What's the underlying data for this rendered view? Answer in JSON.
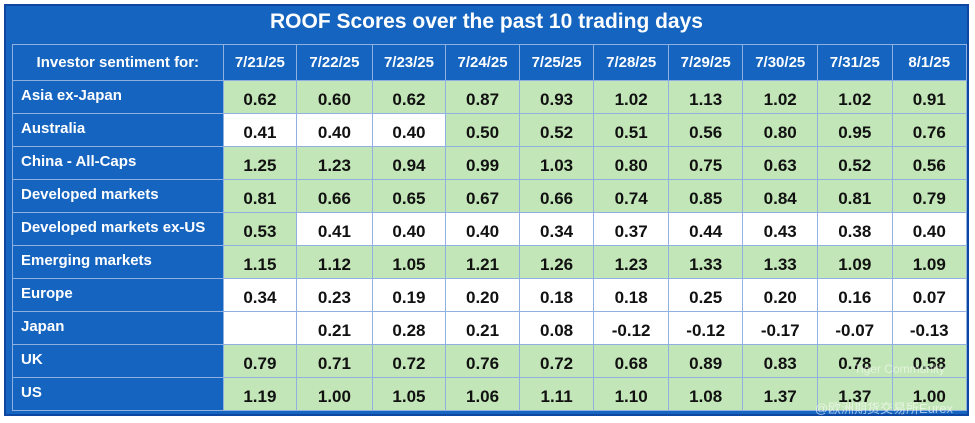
{
  "chart_data": {
    "type": "table",
    "title": "ROOF Scores over the past 10 trading days",
    "row_header_label": "Investor sentiment for:",
    "columns": [
      "7/21/25",
      "7/22/25",
      "7/23/25",
      "7/24/25",
      "7/25/25",
      "7/28/25",
      "7/29/25",
      "7/30/25",
      "7/31/25",
      "8/1/25"
    ],
    "rows": [
      {
        "label": "Asia ex-Japan",
        "values": [
          "0.62",
          "0.60",
          "0.62",
          "0.87",
          "0.93",
          "1.02",
          "1.13",
          "1.02",
          "1.02",
          "0.91"
        ],
        "shading": [
          "g",
          "g",
          "g",
          "g",
          "g",
          "g",
          "g",
          "g",
          "g",
          "g"
        ]
      },
      {
        "label": "Australia",
        "values": [
          "0.41",
          "0.40",
          "0.40",
          "0.50",
          "0.52",
          "0.51",
          "0.56",
          "0.80",
          "0.95",
          "0.76"
        ],
        "shading": [
          "w",
          "w",
          "w",
          "g",
          "g",
          "g",
          "g",
          "g",
          "g",
          "g"
        ]
      },
      {
        "label": "China - All-Caps",
        "values": [
          "1.25",
          "1.23",
          "0.94",
          "0.99",
          "1.03",
          "0.80",
          "0.75",
          "0.63",
          "0.52",
          "0.56"
        ],
        "shading": [
          "g",
          "g",
          "g",
          "g",
          "g",
          "g",
          "g",
          "g",
          "g",
          "g"
        ]
      },
      {
        "label": "Developed markets",
        "values": [
          "0.81",
          "0.66",
          "0.65",
          "0.67",
          "0.66",
          "0.74",
          "0.85",
          "0.84",
          "0.81",
          "0.79"
        ],
        "shading": [
          "g",
          "g",
          "g",
          "g",
          "g",
          "g",
          "g",
          "g",
          "g",
          "g"
        ]
      },
      {
        "label": "Developed markets ex-US",
        "values": [
          "0.53",
          "0.41",
          "0.40",
          "0.40",
          "0.34",
          "0.37",
          "0.44",
          "0.43",
          "0.38",
          "0.40"
        ],
        "shading": [
          "g",
          "w",
          "w",
          "w",
          "w",
          "w",
          "w",
          "w",
          "w",
          "w"
        ]
      },
      {
        "label": "Emerging markets",
        "values": [
          "1.15",
          "1.12",
          "1.05",
          "1.21",
          "1.26",
          "1.23",
          "1.33",
          "1.33",
          "1.09",
          "1.09"
        ],
        "shading": [
          "g",
          "g",
          "g",
          "g",
          "g",
          "g",
          "g",
          "g",
          "g",
          "g"
        ]
      },
      {
        "label": "Europe",
        "values": [
          "0.34",
          "0.23",
          "0.19",
          "0.20",
          "0.18",
          "0.18",
          "0.25",
          "0.20",
          "0.16",
          "0.07"
        ],
        "shading": [
          "w",
          "w",
          "w",
          "w",
          "w",
          "w",
          "w",
          "w",
          "w",
          "w"
        ]
      },
      {
        "label": "Japan",
        "values": [
          "",
          "0.21",
          "0.28",
          "0.21",
          "0.08",
          "-0.12",
          "-0.12",
          "-0.17",
          "-0.07",
          "-0.13"
        ],
        "shading": [
          "w",
          "w",
          "w",
          "w",
          "w",
          "w",
          "w",
          "w",
          "w",
          "w"
        ]
      },
      {
        "label": "UK",
        "values": [
          "0.79",
          "0.71",
          "0.72",
          "0.76",
          "0.72",
          "0.68",
          "0.89",
          "0.83",
          "0.78",
          "0.58"
        ],
        "shading": [
          "g",
          "g",
          "g",
          "g",
          "g",
          "g",
          "g",
          "g",
          "g",
          "g"
        ]
      },
      {
        "label": "US",
        "values": [
          "1.19",
          "1.00",
          "1.05",
          "1.06",
          "1.11",
          "1.10",
          "1.08",
          "1.37",
          "1.37",
          "1.00"
        ],
        "shading": [
          "g",
          "g",
          "g",
          "g",
          "g",
          "g",
          "g",
          "g",
          "g",
          "g"
        ]
      }
    ],
    "colors": {
      "positive_shade": "#c2e6b7",
      "neutral_shade": "#ffffff",
      "header_bg": "#1565c0"
    }
  },
  "watermarks": [
    "Tiger Community",
    "@欧洲期货交易所Eurex"
  ]
}
